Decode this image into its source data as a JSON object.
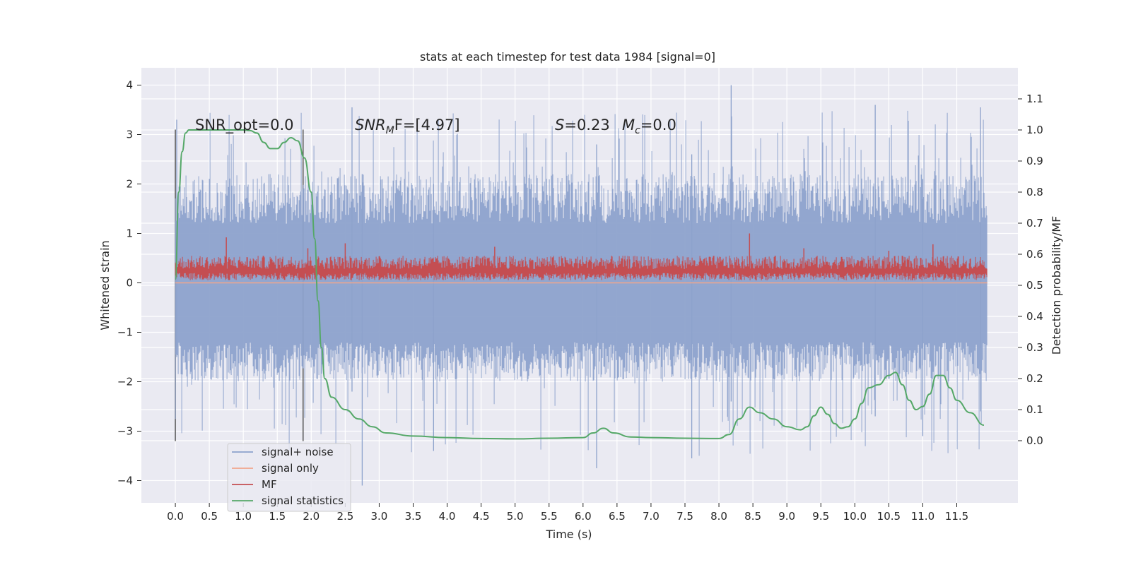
{
  "chart_data": {
    "type": "line",
    "title": "stats at each timestep for test data 1984 [signal=0]",
    "xlabel": "Time (s)",
    "ylabel_left": "Whitened strain",
    "ylabel_right": "Detection probability/MF",
    "xlim": [
      -0.5,
      12.4
    ],
    "ylim_left": [
      -4.45,
      4.35
    ],
    "ylim_right": [
      -0.2,
      1.2
    ],
    "x_ticks": [
      0.0,
      0.5,
      1.0,
      1.5,
      2.0,
      2.5,
      3.0,
      3.5,
      4.0,
      4.5,
      5.0,
      5.5,
      6.0,
      6.5,
      7.0,
      7.5,
      8.0,
      8.5,
      9.0,
      9.5,
      10.0,
      10.5,
      11.0,
      11.5
    ],
    "x_tick_labels": [
      "0.0",
      "0.5",
      "1.0",
      "1.5",
      "2.0",
      "2.5",
      "3.0",
      "3.5",
      "4.0",
      "4.5",
      "5.0",
      "5.5",
      "6.0",
      "6.5",
      "7.0",
      "7.5",
      "8.0",
      "8.5",
      "9.0",
      "9.5",
      "10.0",
      "10.5",
      "11.0",
      "11.5"
    ],
    "y_left_ticks": [
      -4,
      -3,
      -2,
      -1,
      0,
      1,
      2,
      3,
      4
    ],
    "y_left_tick_labels": [
      "−4",
      "−3",
      "−2",
      "−1",
      "0",
      "1",
      "2",
      "3",
      "4"
    ],
    "y_right_ticks": [
      0.0,
      0.1,
      0.2,
      0.3,
      0.4,
      0.5,
      0.6,
      0.7,
      0.8,
      0.9,
      1.0,
      1.1
    ],
    "y_right_tick_labels": [
      "0.0",
      "0.1",
      "0.2",
      "0.3",
      "0.4",
      "0.5",
      "0.6",
      "0.7",
      "0.8",
      "0.9",
      "1.0",
      "1.1"
    ],
    "grid": true,
    "legend_position": "lower-left",
    "annotations": {
      "snr_opt": "SNR_opt=0.0",
      "snr_mf_prefix": "SNR",
      "snr_mf_sub": "M",
      "snr_mf_rest": "F=[4.97]",
      "s_label": "S",
      "s_value": "=0.23",
      "mc_label": "M",
      "mc_sub": "c",
      "mc_value": "=0.0"
    },
    "vertical_markers_x": [
      0.0,
      1.88
    ],
    "series": [
      {
        "name": "signal+ noise",
        "color": "#8da2cc",
        "axis": "left",
        "x_range": [
          0.0,
          11.95
        ],
        "envelope_upper_typical": 2.2,
        "envelope_lower_typical": -2.0,
        "max": 4.0,
        "min": -4.1
      },
      {
        "name": "signal only",
        "color": "#f0a58c",
        "axis": "left",
        "x_range": [
          0.0,
          11.95
        ],
        "values_constant": 0.0
      },
      {
        "name": "MF",
        "color": "#c44e52",
        "axis": "left",
        "x_range": [
          0.0,
          11.95
        ],
        "envelope_upper_typical": 0.55,
        "envelope_lower_typical": 0.05,
        "max": 1.0
      },
      {
        "name": "signal statistics",
        "color": "#55a868",
        "axis": "right",
        "x": [
          0.0,
          0.05,
          0.1,
          0.15,
          0.2,
          0.3,
          0.5,
          0.7,
          0.9,
          1.0,
          1.1,
          1.2,
          1.3,
          1.4,
          1.5,
          1.6,
          1.7,
          1.8,
          1.9,
          2.0,
          2.05,
          2.1,
          2.15,
          2.2,
          2.3,
          2.5,
          2.7,
          2.9,
          3.1,
          3.5,
          4.0,
          4.5,
          5.0,
          5.5,
          6.0,
          6.15,
          6.3,
          6.45,
          6.7,
          7.0,
          7.5,
          8.0,
          8.15,
          8.3,
          8.45,
          8.6,
          8.8,
          9.0,
          9.2,
          9.3,
          9.4,
          9.5,
          9.6,
          9.7,
          9.8,
          9.9,
          10.0,
          10.1,
          10.2,
          10.35,
          10.5,
          10.6,
          10.7,
          10.8,
          10.9,
          11.0,
          11.1,
          11.2,
          11.3,
          11.4,
          11.5,
          11.7,
          11.9
        ],
        "values": [
          0.52,
          0.8,
          0.93,
          0.99,
          1.0,
          1.0,
          1.0,
          1.0,
          1.0,
          1.0,
          0.998,
          0.99,
          0.96,
          0.94,
          0.94,
          0.96,
          0.975,
          0.965,
          0.91,
          0.8,
          0.65,
          0.45,
          0.3,
          0.2,
          0.14,
          0.1,
          0.07,
          0.045,
          0.025,
          0.015,
          0.01,
          0.007,
          0.006,
          0.008,
          0.01,
          0.025,
          0.04,
          0.025,
          0.012,
          0.01,
          0.008,
          0.007,
          0.02,
          0.07,
          0.108,
          0.09,
          0.07,
          0.045,
          0.035,
          0.045,
          0.08,
          0.108,
          0.085,
          0.055,
          0.04,
          0.045,
          0.07,
          0.12,
          0.17,
          0.18,
          0.21,
          0.22,
          0.18,
          0.13,
          0.1,
          0.11,
          0.15,
          0.21,
          0.21,
          0.17,
          0.13,
          0.09,
          0.05
        ]
      }
    ]
  }
}
